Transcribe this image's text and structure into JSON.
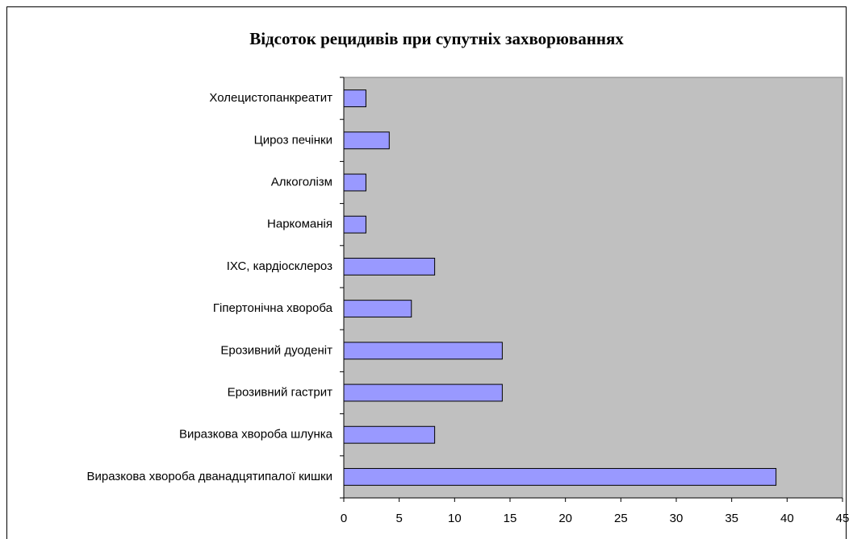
{
  "chart_data": {
    "type": "bar",
    "orientation": "horizontal",
    "title": "Відсоток рецидивів при супутніх захворюваннях",
    "categories": [
      "Виразкова хвороба дванадцятипалої кишки",
      "Виразкова хвороба шлунка",
      "Ерозивний гастрит",
      "Ерозивний дуоденіт",
      "Гіпертонічна хвороба",
      "ІХС, кардіосклероз",
      "Наркоманія",
      "Алкоголізм",
      "Цироз печінки",
      "Холецистопанкреатит"
    ],
    "values": [
      39,
      8.2,
      14.3,
      14.3,
      6.1,
      8.2,
      2,
      2,
      4.1,
      2
    ],
    "color": "#9999ff",
    "plot_background": "#c0c0c0",
    "xlim": [
      0,
      45
    ],
    "xticks": [
      0,
      5,
      10,
      15,
      20,
      25,
      30,
      35,
      40,
      45
    ],
    "grid": false
  }
}
